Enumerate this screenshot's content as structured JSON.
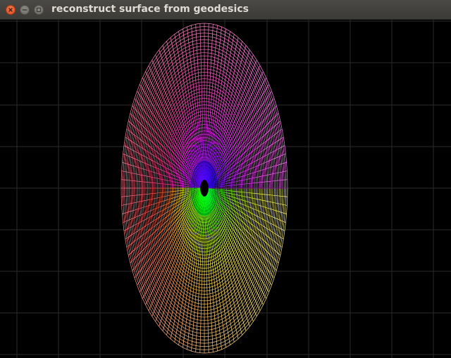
{
  "window": {
    "title": "reconstruct surface from geodesics",
    "controls": {
      "close": "close-icon",
      "minimize": "minimize-icon",
      "maximize": "maximize-icon"
    }
  },
  "viewport": {
    "background": "#000000",
    "grid_color": "#2b2b2b",
    "hole_color": "#000000"
  }
}
